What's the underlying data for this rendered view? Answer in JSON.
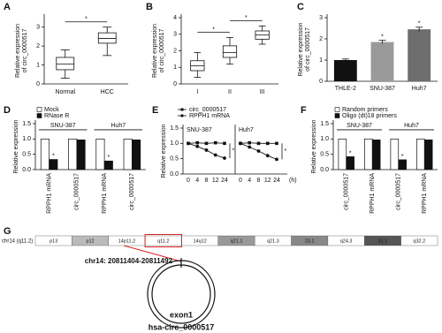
{
  "chart_data": [
    {
      "label": "A",
      "type": "box",
      "ylabel": [
        "Relative expression",
        "of circ_0000517"
      ],
      "categories": [
        "Normal",
        "HCC"
      ],
      "boxes": [
        {
          "min": 0.3,
          "q1": 0.75,
          "median": 1.05,
          "q3": 1.4,
          "max": 1.8
        },
        {
          "min": 1.5,
          "q1": 2.15,
          "median": 2.4,
          "q3": 2.7,
          "max": 3.0
        }
      ],
      "ylim": [
        0,
        3.5
      ],
      "yticks": [
        0,
        1,
        2,
        3
      ],
      "significance": [
        {
          "from": "Normal",
          "to": "HCC",
          "label": "*"
        }
      ]
    },
    {
      "label": "B",
      "type": "box",
      "ylabel": [
        "Relative expression",
        "of circ_0000517"
      ],
      "categories": [
        "I",
        "II",
        "III"
      ],
      "boxes": [
        {
          "min": 0.4,
          "q1": 0.8,
          "median": 1.1,
          "q3": 1.4,
          "max": 1.9
        },
        {
          "min": 1.2,
          "q1": 1.6,
          "median": 1.9,
          "q3": 2.3,
          "max": 2.8
        },
        {
          "min": 2.4,
          "q1": 2.7,
          "median": 2.95,
          "q3": 3.2,
          "max": 3.5
        }
      ],
      "ylim": [
        0,
        4
      ],
      "yticks": [
        0,
        1,
        2,
        3,
        4
      ],
      "significance": [
        {
          "from": "I",
          "to": "II",
          "label": "*"
        },
        {
          "from": "II",
          "to": "III",
          "label": "*"
        }
      ]
    },
    {
      "label": "C",
      "type": "bar",
      "ylabel": [
        "Relative expression",
        "of circ_0000517"
      ],
      "categories": [
        "THLE-2",
        "SNU-387",
        "Huh7"
      ],
      "values": [
        1.0,
        1.85,
        2.45
      ],
      "errors": [
        0.05,
        0.08,
        0.1
      ],
      "colors": [
        "#111111",
        "#9a9a9a",
        "#6e6e6e"
      ],
      "annotations": [
        null,
        "*",
        "*"
      ],
      "ylim": [
        0,
        3
      ],
      "yticks": [
        0,
        1,
        2,
        3
      ]
    },
    {
      "label": "D",
      "type": "grouped-bar",
      "ylabel": [
        "Relative expression"
      ],
      "groups": [
        {
          "name": "SNU-387",
          "categories": [
            "RPPH1 mRNA",
            "circ_0000517"
          ]
        },
        {
          "name": "Huh7",
          "categories": [
            "RPPH1 mRNA",
            "circ_0000517"
          ]
        }
      ],
      "series": [
        {
          "name": "Mock",
          "color": "#ffffff",
          "values": [
            1.0,
            1.0,
            1.0,
            1.0
          ]
        },
        {
          "name": "RNase R",
          "color": "#111111",
          "values": [
            0.33,
            0.97,
            0.28,
            0.97
          ],
          "annotations": [
            "*",
            null,
            "*",
            null
          ]
        }
      ],
      "ylim": [
        0,
        1.5
      ],
      "yticks": [
        {
          "value": 0,
          "label": "0.0"
        },
        0.5,
        {
          "value": 1,
          "label": "1.0"
        },
        1.5
      ]
    },
    {
      "label": "E",
      "type": "line",
      "ylabel": [
        "Relative expression"
      ],
      "facets": [
        "SNU-387",
        "Huh7"
      ],
      "x": [
        "0",
        "4",
        "8",
        "12",
        "24"
      ],
      "xunit": "(h)",
      "series": [
        {
          "name": "circ_0000517",
          "color": "#111111",
          "marker": "square",
          "values": [
            [
              1.0,
              1.02,
              1.0,
              1.02,
              1.0
            ],
            [
              1.0,
              1.02,
              1.0,
              1.0,
              1.0
            ]
          ]
        },
        {
          "name": "RPPH1 mRNA",
          "color": "#111111",
          "marker": "circle",
          "values": [
            [
              1.0,
              0.9,
              0.78,
              0.62,
              0.52
            ],
            [
              1.0,
              0.88,
              0.75,
              0.6,
              0.48
            ]
          ]
        }
      ],
      "annotations": [
        "*",
        "*"
      ],
      "ylim": [
        0,
        1.5
      ],
      "yticks": [
        {
          "value": 0,
          "label": "0.0"
        },
        0.5,
        {
          "value": 1,
          "label": "1.0"
        },
        1.5
      ]
    },
    {
      "label": "F",
      "type": "grouped-bar",
      "ylabel": [
        "Relative expression"
      ],
      "groups": [
        {
          "name": "SNU-387",
          "categories": [
            "circ_0000517",
            "RPPH1 mRNA"
          ]
        },
        {
          "name": "Huh7",
          "categories": [
            "circ_0000517",
            "RPPH1 mRNA"
          ]
        }
      ],
      "series": [
        {
          "name": "Random primers",
          "color": "#ffffff",
          "values": [
            1.0,
            1.0,
            1.0,
            1.0
          ]
        },
        {
          "name": "Oligo (dt)18 primers",
          "color": "#111111",
          "values": [
            0.42,
            0.97,
            0.32,
            0.97
          ],
          "annotations": [
            "*",
            null,
            "*",
            null
          ]
        }
      ],
      "ylim": [
        0,
        1.5
      ],
      "yticks": [
        {
          "value": 0,
          "label": "0.0"
        },
        0.5,
        {
          "value": 1,
          "label": "1.0"
        },
        1.5
      ]
    }
  ],
  "diagram": {
    "label": "G",
    "chromosome": "chr14 (q11.2)",
    "bands": [
      "p13",
      "p12",
      "14p11.2",
      "q11.2",
      "14q12",
      "q21.1",
      "q21.3",
      "23.1",
      "q24.3",
      "31.1",
      "q32.2"
    ],
    "locus": "chr14: 20811404-20811492",
    "exon": "exon1",
    "name": "hsa-circ_0000517"
  }
}
